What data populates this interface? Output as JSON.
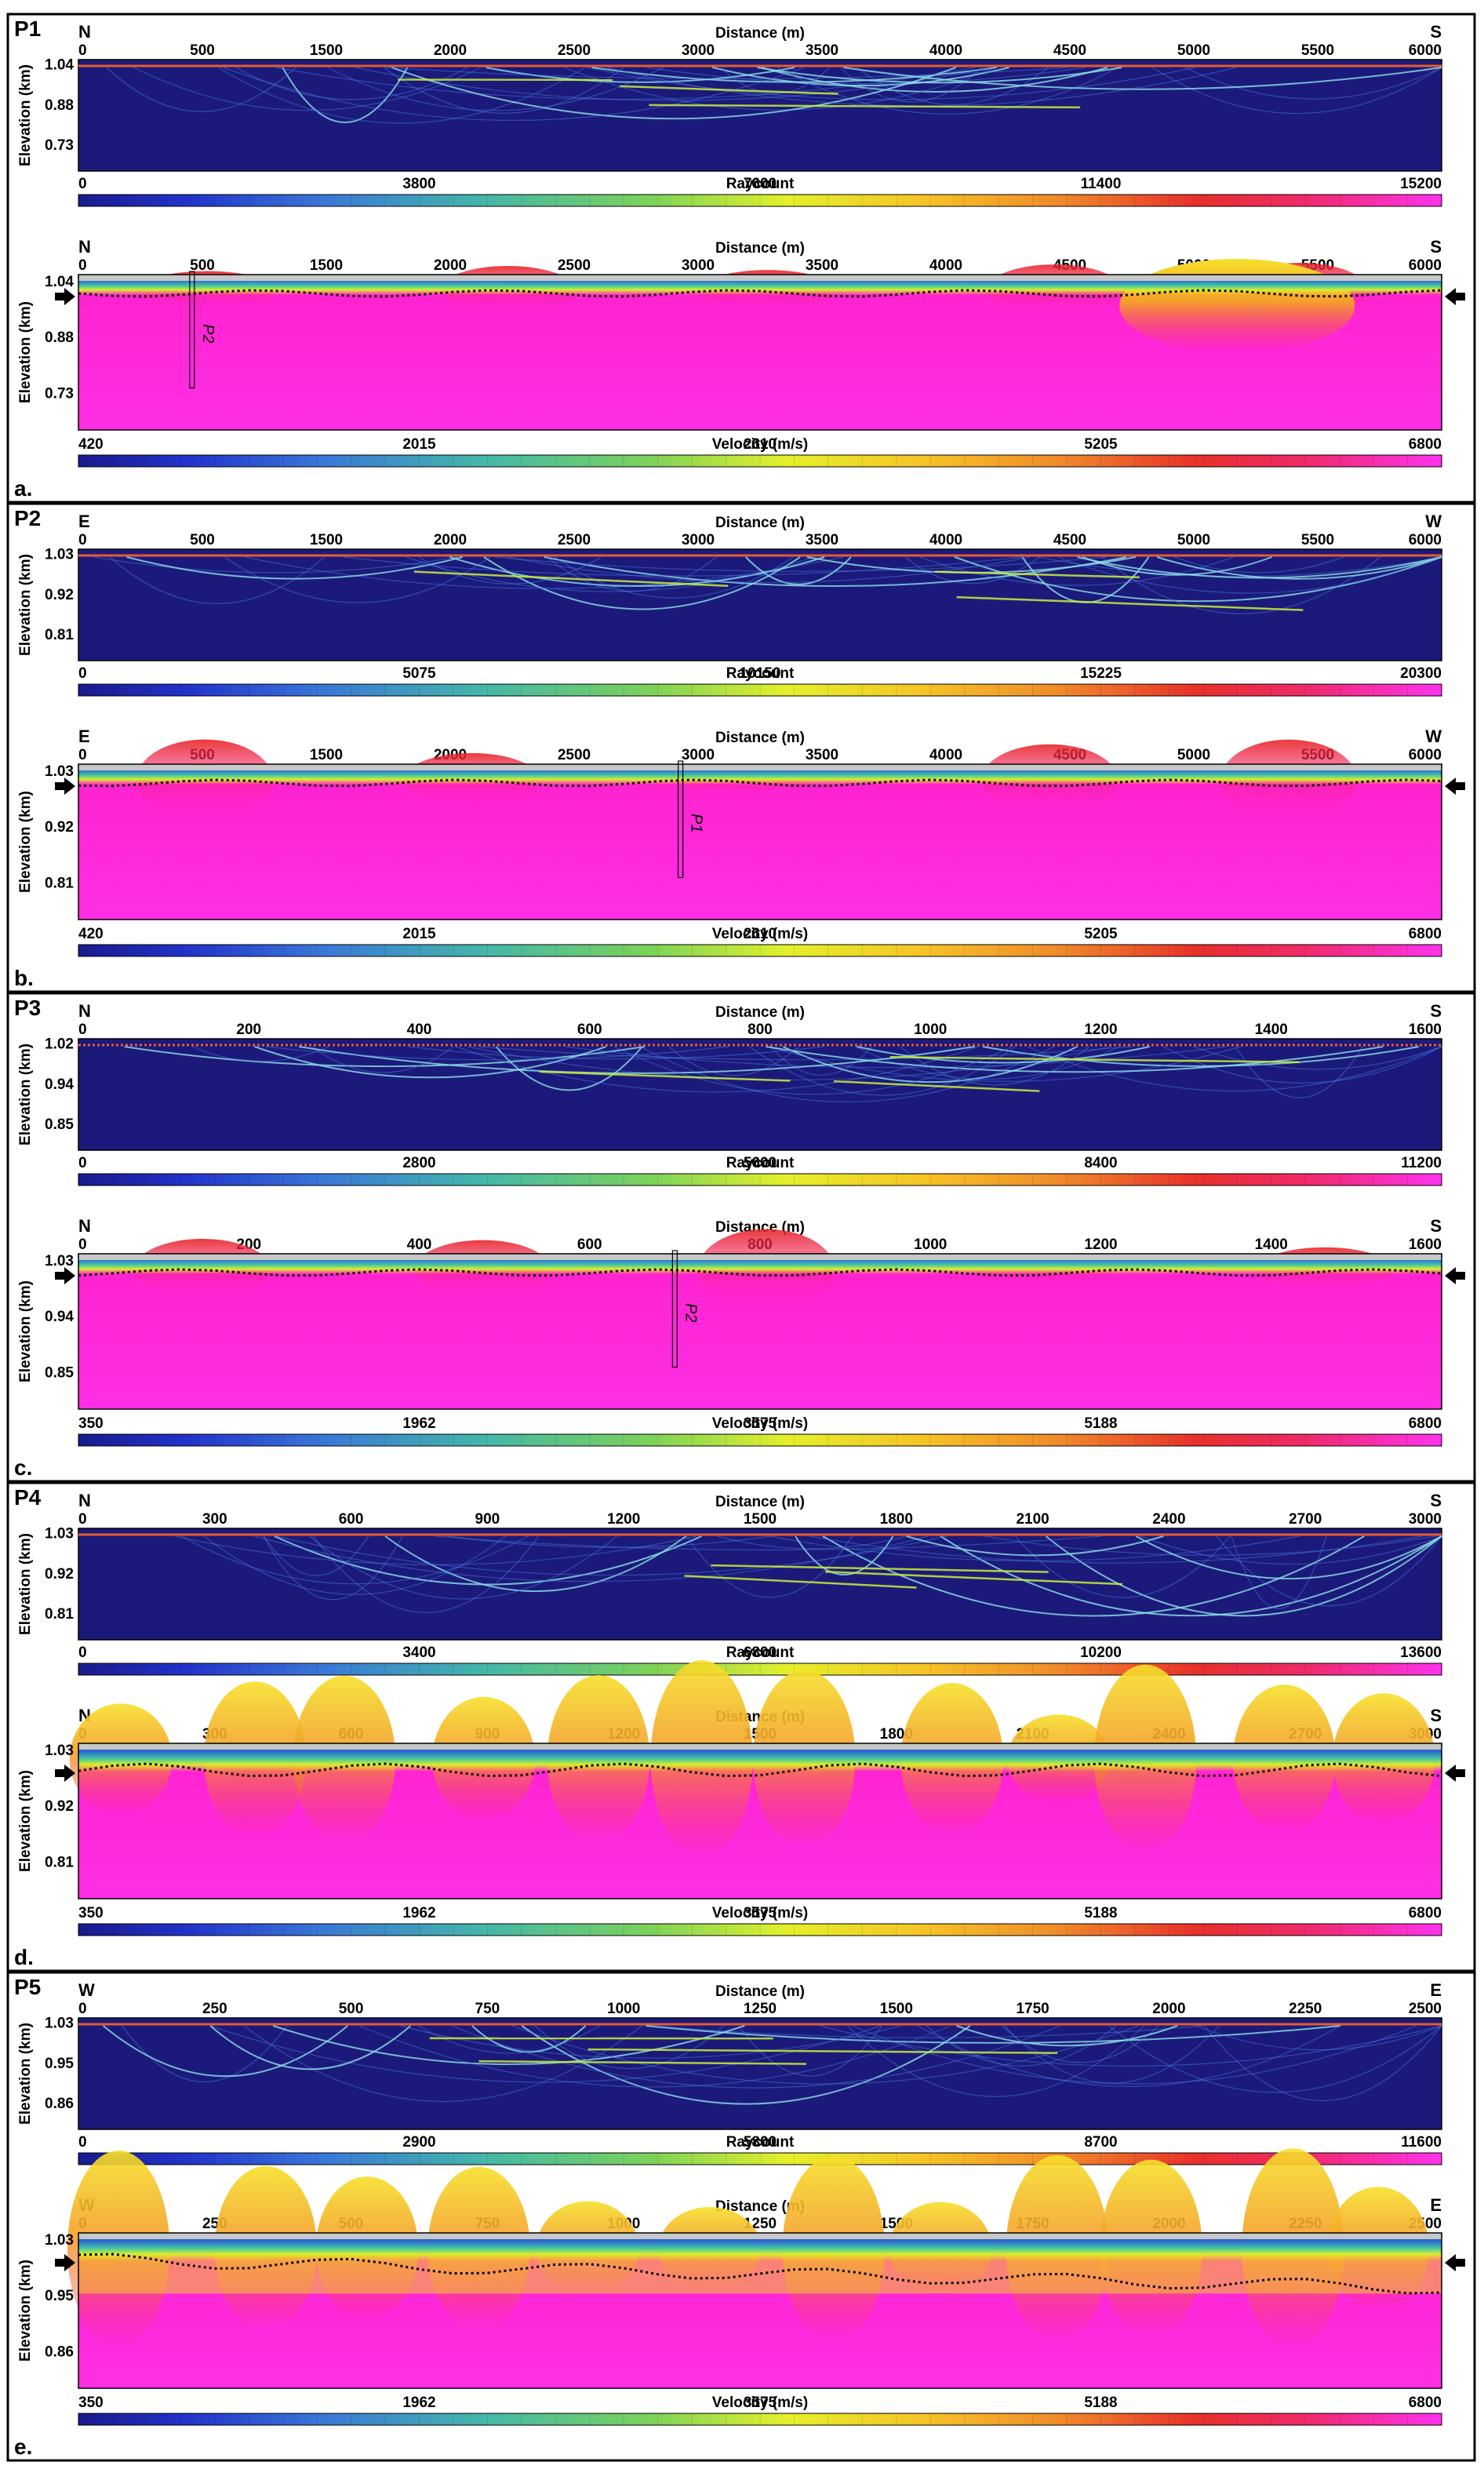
{
  "chart_data": [
    {
      "panel": "P1",
      "letter": "a.",
      "left_dir": "N",
      "right_dir": "S",
      "xlabel": "Distance (m)",
      "ylabel": "Elevation (km)",
      "x_ticks": [
        "0",
        "500",
        "1500",
        "2000",
        "2500",
        "3000",
        "3500",
        "4000",
        "4500",
        "5000",
        "5500",
        "6000"
      ],
      "y_ticks": [
        "1.04",
        "0.88",
        "0.73"
      ],
      "raycount": {
        "type": "heatmap",
        "title": "Raycount",
        "colorbar_ticks": [
          "0",
          "3800",
          "7600",
          "11400",
          "15200"
        ]
      },
      "velocity": {
        "type": "heatmap",
        "title": "Velocity (m/s)",
        "colorbar_ticks": [
          "420",
          "2015",
          "2610",
          "5205",
          "6800"
        ],
        "crossing_label": "P2",
        "crossing_at_m": 500
      }
    },
    {
      "panel": "P2",
      "letter": "b.",
      "left_dir": "E",
      "right_dir": "W",
      "xlabel": "Distance (m)",
      "ylabel": "Elevation (km)",
      "x_ticks": [
        "0",
        "500",
        "1500",
        "2000",
        "2500",
        "3000",
        "3500",
        "4000",
        "4500",
        "5000",
        "5500",
        "6000"
      ],
      "y_ticks": [
        "1.03",
        "0.92",
        "0.81"
      ],
      "raycount": {
        "type": "heatmap",
        "title": "Raycount",
        "colorbar_ticks": [
          "0",
          "5075",
          "10150",
          "15225",
          "20300"
        ]
      },
      "velocity": {
        "type": "heatmap",
        "title": "Velocity (m/s)",
        "colorbar_ticks": [
          "420",
          "2015",
          "2610",
          "5205",
          "6800"
        ],
        "crossing_label": "P1",
        "crossing_at_m": 2650
      }
    },
    {
      "panel": "P3",
      "letter": "c.",
      "left_dir": "N",
      "right_dir": "S",
      "xlabel": "Distance (m)",
      "ylabel": "Elevation (km)",
      "x_ticks": [
        "0",
        "200",
        "400",
        "600",
        "800",
        "1000",
        "1200",
        "1400",
        "1600"
      ],
      "y_ticks": [
        "1.02",
        "0.94",
        "0.85"
      ],
      "y_ticks_velocity": [
        "1.03",
        "0.94",
        "0.85"
      ],
      "raycount": {
        "type": "heatmap",
        "title": "Raycount",
        "colorbar_ticks": [
          "0",
          "2800",
          "5600",
          "8400",
          "11200"
        ]
      },
      "velocity": {
        "type": "heatmap",
        "title": "Velocity (m/s)",
        "colorbar_ticks": [
          "350",
          "1962",
          "3575",
          "5188",
          "6800"
        ],
        "crossing_label": "P2",
        "crossing_at_m": 700
      }
    },
    {
      "panel": "P4",
      "letter": "d.",
      "left_dir": "N",
      "right_dir": "S",
      "xlabel": "Distance (m)",
      "ylabel": "Elevation (km)",
      "x_ticks": [
        "0",
        "300",
        "600",
        "900",
        "1200",
        "1500",
        "1800",
        "2100",
        "2400",
        "2700",
        "3000"
      ],
      "y_ticks": [
        "1.03",
        "0.92",
        "0.81"
      ],
      "raycount": {
        "type": "heatmap",
        "title": "Raycount",
        "colorbar_ticks": [
          "0",
          "3400",
          "6800",
          "10200",
          "13600"
        ]
      },
      "velocity": {
        "type": "heatmap",
        "title": "Velocity (m/s)",
        "colorbar_ticks": [
          "350",
          "1962",
          "3575",
          "5188",
          "6800"
        ]
      }
    },
    {
      "panel": "P5",
      "letter": "e.",
      "left_dir": "W",
      "right_dir": "E",
      "xlabel": "Distance (m)",
      "ylabel": "Elevation (km)",
      "x_ticks": [
        "0",
        "250",
        "500",
        "750",
        "1000",
        "1250",
        "1500",
        "1750",
        "2000",
        "2250",
        "2500"
      ],
      "y_ticks": [
        "1.03",
        "0.95",
        "0.86"
      ],
      "raycount": {
        "type": "heatmap",
        "title": "Raycount",
        "colorbar_ticks": [
          "0",
          "2900",
          "5800",
          "8700",
          "11600"
        ]
      },
      "velocity": {
        "type": "heatmap",
        "title": "Velocity (m/s)",
        "colorbar_ticks": [
          "350",
          "1962",
          "3575",
          "5188",
          "6800"
        ]
      }
    }
  ]
}
